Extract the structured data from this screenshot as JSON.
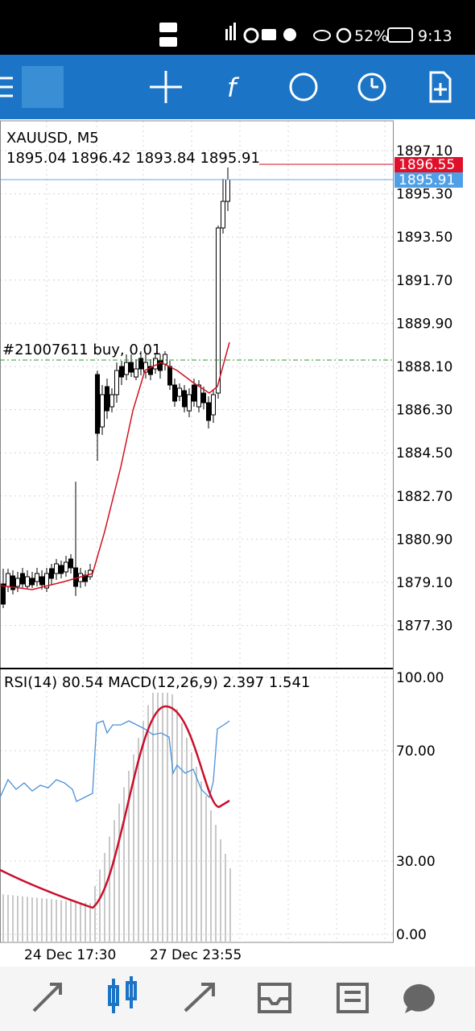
{
  "status_bar": {
    "battery": "52%",
    "time": "9:13"
  },
  "chart": {
    "symbol": "XAUUSD, M5",
    "ohlc": "1895.04 1896.42 1893.84 1895.91",
    "order_label": "#21007611 buy, 0.01",
    "price_axis": [
      "1897.10",
      "1895.30",
      "1893.50",
      "1891.70",
      "1889.90",
      "1888.10",
      "1886.30",
      "1884.50",
      "1882.70",
      "1880.90",
      "1879.10",
      "1877.30"
    ],
    "ask_label": "1896.55",
    "bid_label": "1895.91",
    "indicator_label": "RSI(14) 80.54 MACD(12,26,9) 2.397 1.541",
    "indicator_axis": [
      "100.00",
      "70.00",
      "30.00",
      "0.00"
    ],
    "time_axis": [
      "24 Dec 17:30",
      "27 Dec 23:55"
    ]
  }
}
